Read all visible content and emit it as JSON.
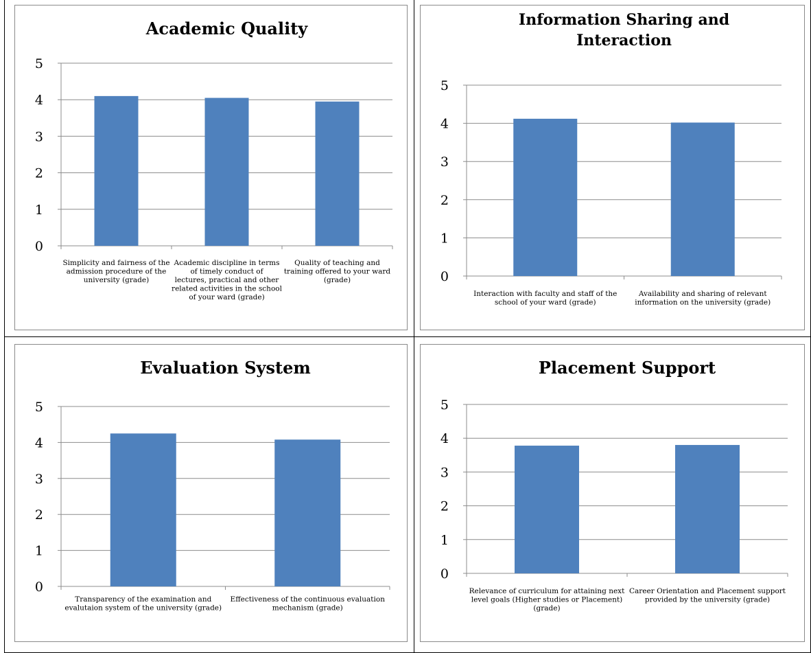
{
  "colors": {
    "bar": "#4f81bd",
    "grid": "#8c8c8c",
    "axis": "#8c8c8c",
    "text": "#000000"
  },
  "chart_data": [
    {
      "type": "bar",
      "title": "Academic Quality",
      "categories": [
        "Simplicity and fairness of the admission procedure of the university (grade)",
        "Academic discipline in terms of timely conduct of lectures, practical and other related activities in the school of your ward (grade)",
        "Quality of teaching and training offered to your ward (grade)"
      ],
      "category_lines": [
        [
          "Simplicity and fairness of the",
          "admission procedure of the",
          "university (grade)"
        ],
        [
          "Academic discipline in terms",
          "of timely conduct of",
          "lectures, practical and other",
          "related activities in the school",
          "of your ward (grade)"
        ],
        [
          "Quality of teaching and",
          "training offered to your ward",
          "(grade)"
        ]
      ],
      "values": [
        4.1,
        4.05,
        3.95
      ],
      "ylim": [
        0,
        5
      ],
      "yticks": [
        "0",
        "1",
        "2",
        "3",
        "4",
        "5"
      ],
      "grid": true
    },
    {
      "type": "bar",
      "title": "Information Sharing and Interaction",
      "title_lines": [
        "Information Sharing and",
        "Interaction"
      ],
      "categories": [
        "Interaction with faculty and staff of the school of your ward (grade)",
        "Availability and sharing of relevant information on the university (grade)"
      ],
      "category_lines": [
        [
          "Interaction with faculty and staff of the",
          "school of your ward (grade)"
        ],
        [
          "Availability and sharing of relevant",
          "information on the university (grade)"
        ]
      ],
      "values": [
        4.12,
        4.02
      ],
      "ylim": [
        0,
        5
      ],
      "yticks": [
        "0",
        "1",
        "2",
        "3",
        "4",
        "5"
      ],
      "grid": true
    },
    {
      "type": "bar",
      "title": "Evaluation System",
      "categories": [
        "Transparency of the examination and evalutaion system of the university (grade)",
        "Effectiveness of the continuous evaluation mechanism (grade)"
      ],
      "category_lines": [
        [
          "Transparency of the examination and",
          "evalutaion system of the university (grade)"
        ],
        [
          "Effectiveness of the continuous evaluation",
          "mechanism (grade)"
        ]
      ],
      "values": [
        4.25,
        4.08
      ],
      "ylim": [
        0,
        5
      ],
      "yticks": [
        "0",
        "1",
        "2",
        "3",
        "4",
        "5"
      ],
      "grid": true
    },
    {
      "type": "bar",
      "title": "Placement Support",
      "categories": [
        "Relevance of curriculum for attaining next level goals (Higher studies or Placement) (grade)",
        "Career Orientation and Placement support provided by the university (grade)"
      ],
      "category_lines": [
        [
          "Relevance of curriculum for attaining next",
          "level goals (Higher studies or Placement)",
          "(grade)"
        ],
        [
          "Career Orientation and Placement support",
          "provided by the university (grade)"
        ]
      ],
      "values": [
        3.78,
        3.8
      ],
      "ylim": [
        0,
        5
      ],
      "yticks": [
        "0",
        "1",
        "2",
        "3",
        "4",
        "5"
      ],
      "grid": true
    }
  ]
}
